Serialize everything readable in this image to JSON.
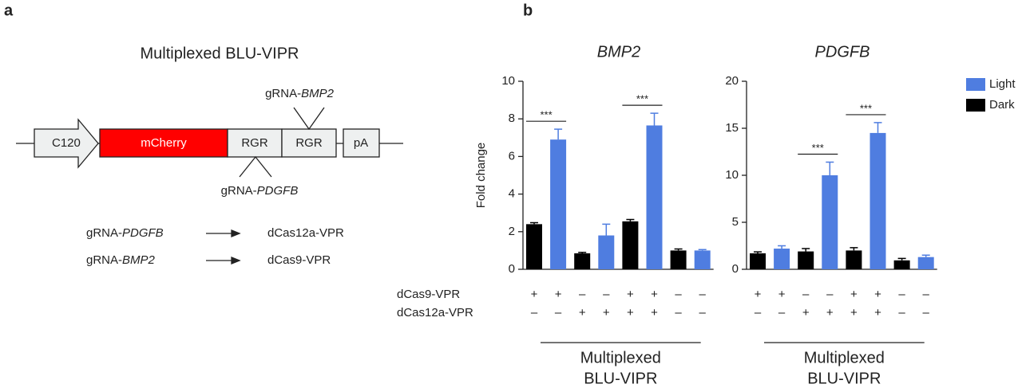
{
  "panel_a": {
    "label": "a",
    "title": "Multiplexed BLU-VIPR",
    "construct": [
      "C120",
      "mCherry",
      "RGR",
      "RGR",
      "pA"
    ],
    "gRNA_top": {
      "prefix": "gRNA-",
      "gene": "BMP2"
    },
    "gRNA_bottom": {
      "prefix": "gRNA-",
      "gene": "PDGFB"
    },
    "mappings": [
      {
        "prefix": "gRNA-",
        "gene": "PDGFB",
        "target": "dCas12a-VPR"
      },
      {
        "prefix": "gRNA-",
        "gene": "BMP2",
        "target": "dCas9-VPR"
      }
    ]
  },
  "panel_b": {
    "label": "b"
  },
  "chart_data": [
    {
      "type": "bar",
      "title": "BMP2",
      "y_label": "Fold change",
      "ylim": [
        0,
        10
      ],
      "yticks": [
        0,
        2,
        4,
        6,
        8,
        10
      ],
      "categories": [
        null,
        null,
        null,
        null,
        null,
        null,
        null,
        null
      ],
      "series": [
        {
          "color": "#000000",
          "values": [
            2.4,
            null,
            0.85,
            null,
            2.55,
            null,
            1.0,
            null
          ],
          "errors": [
            0.08,
            null,
            0.05,
            null,
            0.1,
            null,
            0.08,
            null
          ]
        },
        {
          "color": "#4f7de0",
          "values": [
            null,
            6.9,
            null,
            1.8,
            null,
            7.65,
            null,
            1.0
          ],
          "errors": [
            null,
            0.55,
            null,
            0.6,
            null,
            0.65,
            null,
            0.05
          ]
        }
      ],
      "conditions": [
        {
          "name": "dCas9-VPR",
          "signs": [
            "+",
            "+",
            "–",
            "–",
            "+",
            "+",
            "–",
            "–"
          ]
        },
        {
          "name": "dCas12a-VPR",
          "signs": [
            "–",
            "–",
            "+",
            "+",
            "+",
            "+",
            "–",
            "–"
          ]
        }
      ],
      "significance": [
        {
          "text": "***",
          "between": [
            0,
            1
          ]
        },
        {
          "text": "***",
          "between": [
            4,
            5
          ]
        }
      ],
      "group_label": [
        "Multiplexed",
        "BLU-VIPR"
      ]
    },
    {
      "type": "bar",
      "title": "PDGFB",
      "ylim": [
        0,
        20
      ],
      "yticks": [
        0,
        5,
        10,
        15,
        20
      ],
      "categories": [
        null,
        null,
        null,
        null,
        null,
        null,
        null,
        null
      ],
      "series": [
        {
          "name": "Dark",
          "color": "#000000",
          "values": [
            1.7,
            null,
            1.9,
            null,
            2.0,
            null,
            0.95,
            null
          ],
          "errors": [
            0.15,
            null,
            0.3,
            null,
            0.3,
            null,
            0.2,
            null
          ]
        },
        {
          "name": "Light",
          "color": "#4f7de0",
          "values": [
            null,
            2.2,
            null,
            10.0,
            null,
            14.5,
            null,
            1.3
          ],
          "errors": [
            null,
            0.3,
            null,
            1.4,
            null,
            1.1,
            null,
            0.2
          ]
        }
      ],
      "conditions": [
        {
          "signs": [
            "+",
            "+",
            "–",
            "–",
            "+",
            "+",
            "–",
            "–"
          ]
        },
        {
          "signs": [
            "–",
            "–",
            "+",
            "+",
            "+",
            "+",
            "–",
            "–"
          ]
        }
      ],
      "significance": [
        {
          "text": "***",
          "between": [
            2,
            3
          ]
        },
        {
          "text": "***",
          "between": [
            4,
            5
          ]
        }
      ],
      "group_label": [
        "Multiplexed",
        "BLU-VIPR"
      ]
    }
  ]
}
